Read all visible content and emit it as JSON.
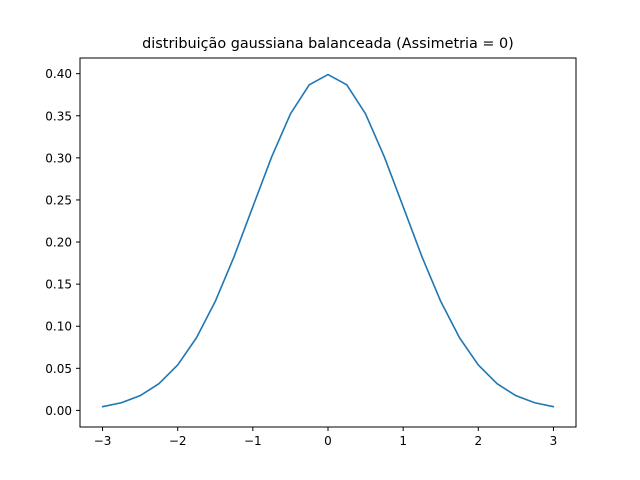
{
  "chart_data": {
    "type": "line",
    "title": "distribuição gaussiana balanceada (Assimetria = 0)",
    "xlabel": "",
    "ylabel": "",
    "xlim": [
      -3.3,
      3.3
    ],
    "ylim": [
      -0.0197,
      0.4186
    ],
    "grid": false,
    "x_ticks": [
      -3,
      -2,
      -1,
      0,
      1,
      2,
      3
    ],
    "x_tick_labels": [
      "−3",
      "−2",
      "−1",
      "0",
      "1",
      "2",
      "3"
    ],
    "y_ticks": [
      0.0,
      0.05,
      0.1,
      0.15,
      0.2,
      0.25,
      0.3,
      0.35,
      0.4
    ],
    "y_tick_labels": [
      "0.00",
      "0.05",
      "0.10",
      "0.15",
      "0.20",
      "0.25",
      "0.30",
      "0.35",
      "0.40"
    ],
    "series": [
      {
        "color": "#1f77b4",
        "x": [
          -3.0,
          -2.75,
          -2.5,
          -2.25,
          -2.0,
          -1.75,
          -1.5,
          -1.25,
          -1.0,
          -0.75,
          -0.5,
          -0.25,
          0.0,
          0.25,
          0.5,
          0.75,
          1.0,
          1.25,
          1.5,
          1.75,
          2.0,
          2.25,
          2.5,
          2.75,
          3.0
        ],
        "y": [
          0.0044,
          0.0091,
          0.0175,
          0.0317,
          0.054,
          0.0863,
          0.1295,
          0.1826,
          0.242,
          0.3011,
          0.3521,
          0.3867,
          0.3989,
          0.3867,
          0.3521,
          0.3011,
          0.242,
          0.1826,
          0.1295,
          0.0863,
          0.054,
          0.0317,
          0.0175,
          0.0091,
          0.0044
        ]
      }
    ]
  }
}
